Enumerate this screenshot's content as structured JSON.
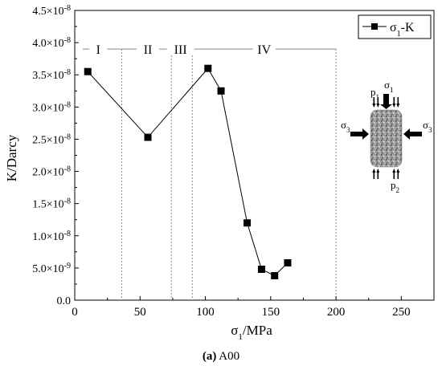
{
  "chart_data": {
    "type": "scatter",
    "xlabel_base": "σ",
    "xlabel_sub": "1",
    "xlabel_rest": "/MPa",
    "ylabel": "K/Darcy",
    "xlim": [
      0,
      275
    ],
    "ylim": [
      0,
      4.5e-08
    ],
    "xticks": [
      0,
      50,
      100,
      150,
      200,
      250
    ],
    "ytick_values": [
      0,
      5e-09,
      1e-08,
      1.5e-08,
      2e-08,
      2.5e-08,
      3e-08,
      3.5e-08,
      4e-08,
      4.5e-08
    ],
    "ytick_labels": [
      {
        "text": "0.0",
        "exp": ""
      },
      {
        "text": "5.0×10",
        "exp": "-9"
      },
      {
        "text": "1.0×10",
        "exp": "-8"
      },
      {
        "text": "1.5×10",
        "exp": "-8"
      },
      {
        "text": "2.0×10",
        "exp": "-8"
      },
      {
        "text": "2.5×10",
        "exp": "-8"
      },
      {
        "text": "3.0×10",
        "exp": "-8"
      },
      {
        "text": "3.5×10",
        "exp": "-8"
      },
      {
        "text": "4.0×10",
        "exp": "-8"
      },
      {
        "text": "4.5×10",
        "exp": "-8"
      }
    ],
    "grid": false,
    "legend_placement": "top-right",
    "series": [
      {
        "name_base": "σ",
        "name_sub": "1",
        "name_rest": "-K",
        "color": "#000000",
        "marker": "square",
        "x": [
          10,
          56,
          102,
          112,
          132,
          143,
          153,
          163
        ],
        "y": [
          3.55e-08,
          2.53e-08,
          3.6e-08,
          3.25e-08,
          1.2e-08,
          4.8e-09,
          3.8e-09,
          5.8e-09
        ]
      }
    ],
    "stage_boundaries": [
      36,
      74,
      90,
      200
    ],
    "stage_line_y": 3.9e-08,
    "stages": [
      {
        "label": "I",
        "x": 18
      },
      {
        "label": "II",
        "x": 56
      },
      {
        "label": "III",
        "x": 81
      },
      {
        "label": "IV",
        "x": 145
      }
    ]
  },
  "inset": {
    "sigma_base": "σ",
    "s1_sub": "1",
    "s3_sub": "3",
    "p_base": "p",
    "p1_sub": "1",
    "p2_sub": "2"
  },
  "caption": {
    "bold": "(a)",
    "rest": " A00"
  }
}
